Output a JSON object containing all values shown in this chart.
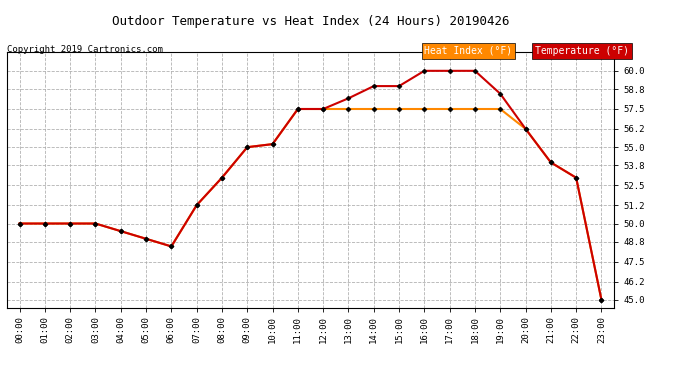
{
  "title": "Outdoor Temperature vs Heat Index (24 Hours) 20190426",
  "copyright": "Copyright 2019 Cartronics.com",
  "background_color": "#ffffff",
  "plot_background": "#ffffff",
  "grid_color": "#aaaaaa",
  "hours": [
    0,
    1,
    2,
    3,
    4,
    5,
    6,
    7,
    8,
    9,
    10,
    11,
    12,
    13,
    14,
    15,
    16,
    17,
    18,
    19,
    20,
    21,
    22,
    23
  ],
  "temperature": [
    50.0,
    50.0,
    50.0,
    50.0,
    49.5,
    49.0,
    48.5,
    51.2,
    53.0,
    55.0,
    55.2,
    57.5,
    57.5,
    58.2,
    59.0,
    59.0,
    60.0,
    60.0,
    60.0,
    58.5,
    56.2,
    54.0,
    53.0,
    45.0
  ],
  "heat_index": [
    50.0,
    50.0,
    50.0,
    50.0,
    49.5,
    49.0,
    48.5,
    51.2,
    53.0,
    55.0,
    55.2,
    57.5,
    57.5,
    57.5,
    57.5,
    57.5,
    57.5,
    57.5,
    57.5,
    57.5,
    56.2,
    54.0,
    53.0,
    45.0
  ],
  "temp_color": "#cc0000",
  "heat_index_color": "#ff8800",
  "marker": "D",
  "marker_size": 2.5,
  "ylim": [
    44.5,
    61.2
  ],
  "yticks": [
    45.0,
    46.2,
    47.5,
    48.8,
    50.0,
    51.2,
    52.5,
    53.8,
    55.0,
    56.2,
    57.5,
    58.8,
    60.0
  ],
  "legend_heat_label": "Heat Index (°F)",
  "legend_temp_label": "Temperature (°F)"
}
